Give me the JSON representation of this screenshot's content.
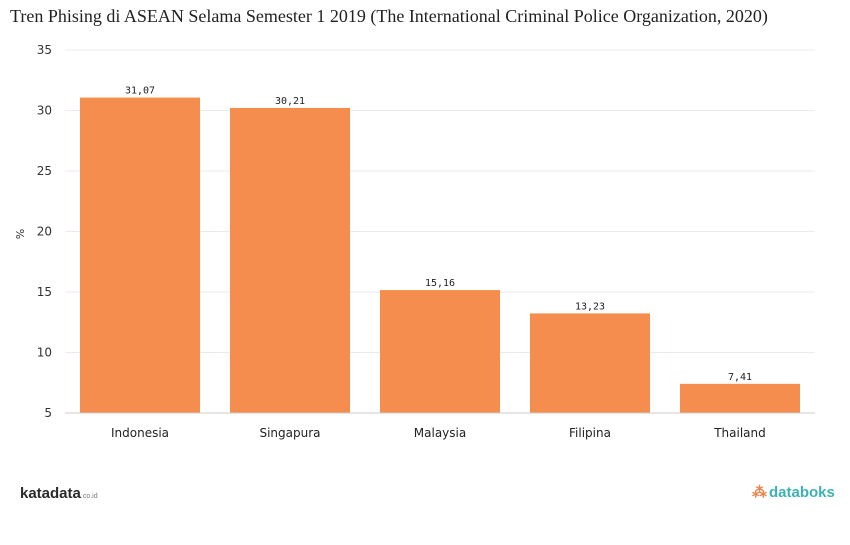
{
  "chart_data": {
    "type": "bar",
    "title": "Tren Phising di ASEAN Selama Semester 1 2019 (The International Criminal Police Organization, 2020)",
    "categories": [
      "Indonesia",
      "Singapura",
      "Malaysia",
      "Filipina",
      "Thailand"
    ],
    "values": [
      31.07,
      30.21,
      15.16,
      13.23,
      7.41
    ],
    "value_labels": [
      "31,07",
      "30,21",
      "15,16",
      "13,23",
      "7,41"
    ],
    "xlabel": "",
    "ylabel": "%",
    "ylim": [
      5,
      35
    ],
    "yticks": [
      5,
      10,
      15,
      20,
      25,
      30,
      35
    ],
    "grid": true,
    "bar_color": "#f58d4f"
  },
  "branding": {
    "left_name": "katadata",
    "left_suffix": ".co.id",
    "right_name": "databoks"
  }
}
